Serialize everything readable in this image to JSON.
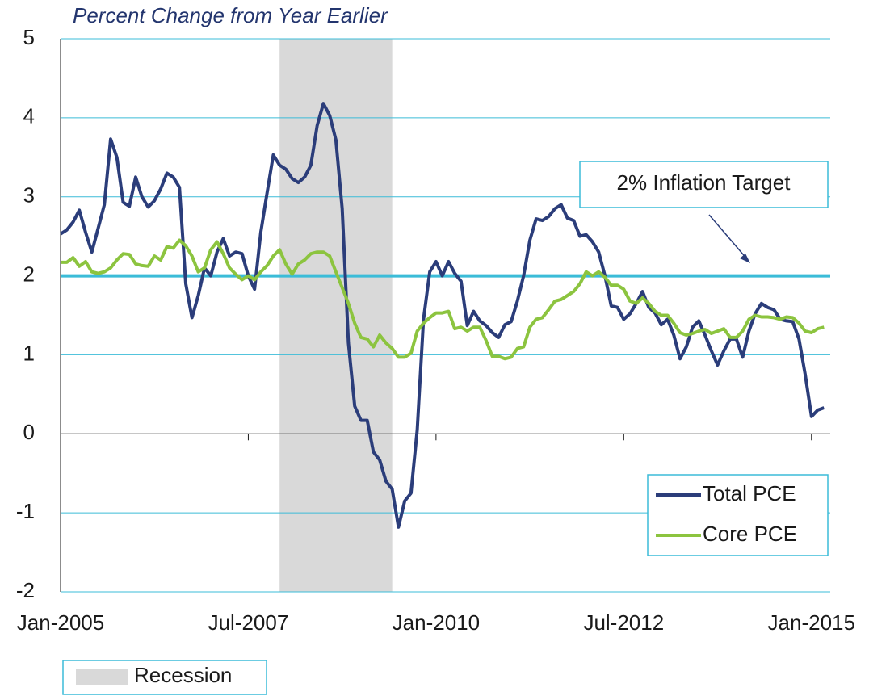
{
  "chart_data": {
    "type": "line",
    "title": "Percent Change from Year Earlier",
    "x": [
      "2005-01",
      "2005-02",
      "2005-03",
      "2005-04",
      "2005-05",
      "2005-06",
      "2005-07",
      "2005-08",
      "2005-09",
      "2005-10",
      "2005-11",
      "2005-12",
      "2006-01",
      "2006-02",
      "2006-03",
      "2006-04",
      "2006-05",
      "2006-06",
      "2006-07",
      "2006-08",
      "2006-09",
      "2006-10",
      "2006-11",
      "2006-12",
      "2007-01",
      "2007-02",
      "2007-03",
      "2007-04",
      "2007-05",
      "2007-06",
      "2007-07",
      "2007-08",
      "2007-09",
      "2007-10",
      "2007-11",
      "2007-12",
      "2008-01",
      "2008-02",
      "2008-03",
      "2008-04",
      "2008-05",
      "2008-06",
      "2008-07",
      "2008-08",
      "2008-09",
      "2008-10",
      "2008-11",
      "2008-12",
      "2009-01",
      "2009-02",
      "2009-03",
      "2009-04",
      "2009-05",
      "2009-06",
      "2009-07",
      "2009-08",
      "2009-09",
      "2009-10",
      "2009-11",
      "2009-12",
      "2010-01",
      "2010-02",
      "2010-03",
      "2010-04",
      "2010-05",
      "2010-06",
      "2010-07",
      "2010-08",
      "2010-09",
      "2010-10",
      "2010-11",
      "2010-12",
      "2011-01",
      "2011-02",
      "2011-03",
      "2011-04",
      "2011-05",
      "2011-06",
      "2011-07",
      "2011-08",
      "2011-09",
      "2011-10",
      "2011-11",
      "2011-12",
      "2012-01",
      "2012-02",
      "2012-03",
      "2012-04",
      "2012-05",
      "2012-06",
      "2012-07",
      "2012-08",
      "2012-09",
      "2012-10",
      "2012-11",
      "2012-12",
      "2013-01",
      "2013-02",
      "2013-03",
      "2013-04",
      "2013-05",
      "2013-06",
      "2013-07",
      "2013-08",
      "2013-09",
      "2013-10",
      "2013-11",
      "2013-12",
      "2014-01",
      "2014-02",
      "2014-03",
      "2014-04",
      "2014-05",
      "2014-06",
      "2014-07",
      "2014-08",
      "2014-09",
      "2014-10",
      "2014-11",
      "2014-12",
      "2015-01",
      "2015-02",
      "2015-03"
    ],
    "series": [
      {
        "name": "Total PCE",
        "color": "#2b3d7a",
        "values": [
          2.53,
          2.58,
          2.68,
          2.83,
          2.55,
          2.3,
          2.6,
          2.9,
          3.73,
          3.5,
          2.93,
          2.88,
          3.25,
          3.0,
          2.87,
          2.95,
          3.1,
          3.3,
          3.25,
          3.12,
          1.9,
          1.47,
          1.75,
          2.1,
          2.0,
          2.3,
          2.47,
          2.25,
          2.3,
          2.28,
          2.0,
          1.83,
          2.55,
          3.05,
          3.53,
          3.4,
          3.35,
          3.23,
          3.18,
          3.25,
          3.4,
          3.9,
          4.18,
          4.03,
          3.72,
          2.85,
          1.15,
          0.35,
          0.17,
          0.17,
          -0.23,
          -0.33,
          -0.6,
          -0.7,
          -1.18,
          -0.85,
          -0.75,
          0.05,
          1.45,
          2.05,
          2.18,
          2.0,
          2.18,
          2.03,
          1.93,
          1.37,
          1.55,
          1.43,
          1.37,
          1.28,
          1.22,
          1.38,
          1.42,
          1.68,
          2.0,
          2.45,
          2.72,
          2.7,
          2.75,
          2.85,
          2.9,
          2.73,
          2.7,
          2.5,
          2.52,
          2.43,
          2.3,
          2.0,
          1.62,
          1.6,
          1.45,
          1.52,
          1.65,
          1.8,
          1.6,
          1.53,
          1.38,
          1.45,
          1.25,
          0.95,
          1.1,
          1.35,
          1.43,
          1.25,
          1.05,
          0.87,
          1.05,
          1.2,
          1.2,
          0.97,
          1.3,
          1.52,
          1.65,
          1.6,
          1.57,
          1.45,
          1.43,
          1.42,
          1.2,
          0.75,
          0.22,
          0.3,
          0.33
        ]
      },
      {
        "name": "Core PCE",
        "color": "#8cc43f",
        "values": [
          2.17,
          2.17,
          2.23,
          2.12,
          2.18,
          2.05,
          2.03,
          2.05,
          2.1,
          2.2,
          2.28,
          2.27,
          2.15,
          2.13,
          2.12,
          2.25,
          2.2,
          2.37,
          2.35,
          2.45,
          2.38,
          2.25,
          2.05,
          2.1,
          2.33,
          2.43,
          2.28,
          2.1,
          2.02,
          1.95,
          2.0,
          1.95,
          2.05,
          2.13,
          2.25,
          2.33,
          2.15,
          2.02,
          2.15,
          2.2,
          2.28,
          2.3,
          2.3,
          2.25,
          2.05,
          1.85,
          1.65,
          1.4,
          1.22,
          1.2,
          1.1,
          1.25,
          1.15,
          1.08,
          0.97,
          0.97,
          1.02,
          1.3,
          1.4,
          1.47,
          1.53,
          1.53,
          1.55,
          1.33,
          1.35,
          1.3,
          1.35,
          1.35,
          1.18,
          0.98,
          0.98,
          0.95,
          0.97,
          1.08,
          1.1,
          1.35,
          1.45,
          1.47,
          1.57,
          1.68,
          1.7,
          1.75,
          1.8,
          1.9,
          2.05,
          2.0,
          2.05,
          1.98,
          1.88,
          1.88,
          1.83,
          1.68,
          1.65,
          1.72,
          1.65,
          1.55,
          1.5,
          1.5,
          1.4,
          1.28,
          1.25,
          1.27,
          1.3,
          1.32,
          1.27,
          1.3,
          1.33,
          1.22,
          1.22,
          1.3,
          1.45,
          1.5,
          1.48,
          1.48,
          1.47,
          1.45,
          1.48,
          1.47,
          1.4,
          1.3,
          1.28,
          1.33,
          1.35
        ]
      }
    ],
    "xlim": [
      "2005-01",
      "2015-04"
    ],
    "xticks": [
      {
        "value": "2005-01",
        "label": "Jan-2005"
      },
      {
        "value": "2007-07",
        "label": "Jul-2007"
      },
      {
        "value": "2010-01",
        "label": "Jan-2010"
      },
      {
        "value": "2012-07",
        "label": "Jul-2012"
      },
      {
        "value": "2015-01",
        "label": "Jan-2015"
      }
    ],
    "ylim": [
      -2,
      5
    ],
    "yticks": [
      -2,
      -1,
      0,
      1,
      2,
      3,
      4,
      5
    ],
    "grid": true,
    "legend": "lower right",
    "recession": {
      "start": "2007-12",
      "end": "2009-06",
      "label": "Recession",
      "color": "#d9d9d9"
    },
    "target": {
      "value": 2,
      "label": "2% Inflation Target",
      "color": "#3bbcd8"
    }
  }
}
